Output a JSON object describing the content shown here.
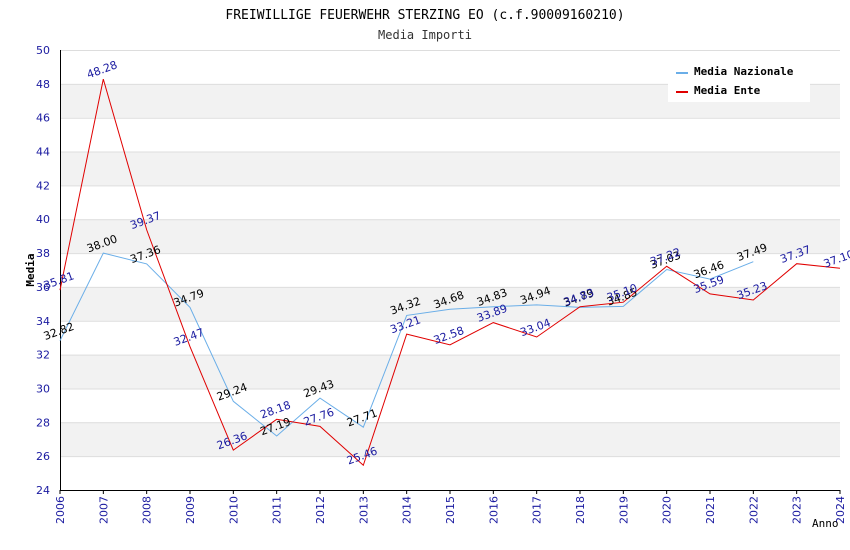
{
  "chart_data": {
    "type": "line",
    "title": "FREIWILLIGE FEUERWEHR STERZING EO (c.f.90009160210)",
    "subtitle": "Media Importi",
    "xlabel": "Anno",
    "ylabel": "Media",
    "ylim": [
      24,
      50
    ],
    "yticks": [
      24,
      26,
      28,
      30,
      32,
      34,
      36,
      38,
      40,
      42,
      44,
      46,
      48,
      50
    ],
    "x": [
      2006,
      2007,
      2008,
      2009,
      2010,
      2011,
      2012,
      2013,
      2014,
      2015,
      2016,
      2017,
      2018,
      2019,
      2020,
      2021,
      2022,
      2023,
      2024
    ],
    "grid": true,
    "legend_position": "top-right",
    "series": [
      {
        "name": "Media Nazionale",
        "color": "#6aaee8",
        "label_color": "#000000",
        "values": [
          32.82,
          38.0,
          37.36,
          34.79,
          29.24,
          27.19,
          29.43,
          27.71,
          34.32,
          34.68,
          34.83,
          34.94,
          34.79,
          34.85,
          37.03,
          36.46,
          37.49,
          null,
          null
        ]
      },
      {
        "name": "Media Ente",
        "color": "#e00000",
        "label_color": "#1a1aa0",
        "values": [
          35.81,
          48.28,
          39.37,
          32.47,
          26.36,
          28.18,
          27.76,
          25.46,
          33.21,
          32.58,
          33.89,
          33.04,
          34.83,
          35.1,
          37.22,
          35.59,
          35.23,
          37.37,
          37.1
        ]
      }
    ]
  }
}
